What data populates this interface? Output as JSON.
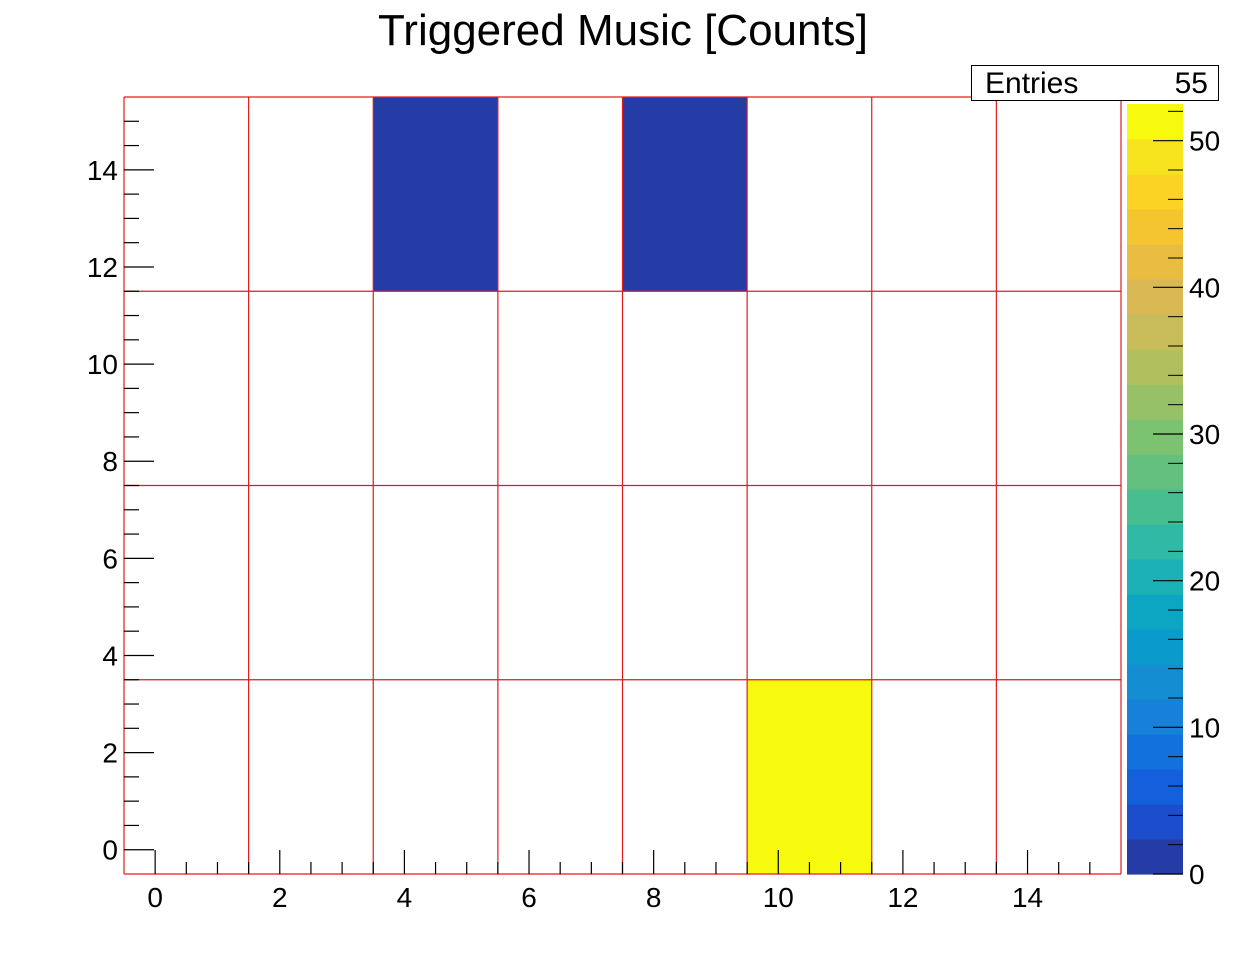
{
  "chart_data": {
    "type": "heatmap",
    "title": "Triggered Music [Counts]",
    "xlabel": "",
    "ylabel": "",
    "x_range": [
      -0.5,
      15.5
    ],
    "y_range": [
      -0.5,
      15.5
    ],
    "x_bin_edges": [
      -0.5,
      1.5,
      3.5,
      5.5,
      7.5,
      9.5,
      11.5,
      13.5,
      15.5
    ],
    "y_bin_edges": [
      -0.5,
      3.5,
      7.5,
      11.5,
      15.5
    ],
    "x_ticks": [
      0,
      2,
      4,
      6,
      8,
      10,
      12,
      14
    ],
    "y_ticks": [
      0,
      2,
      4,
      6,
      8,
      10,
      12,
      14
    ],
    "z_range": [
      0,
      52.5
    ],
    "z_ticks": [
      0,
      10,
      20,
      30,
      40,
      50
    ],
    "cells": [
      {
        "x_bin": [
          3.5,
          5.5
        ],
        "y_bin": [
          11.5,
          15.5
        ],
        "value": 1
      },
      {
        "x_bin": [
          7.5,
          9.5
        ],
        "y_bin": [
          11.5,
          15.5
        ],
        "value": 1
      },
      {
        "x_bin": [
          9.5,
          11.5
        ],
        "y_bin": [
          -0.5,
          3.5
        ],
        "value": 53
      }
    ],
    "stats": {
      "label": "Entries",
      "value": "55"
    },
    "grid": true,
    "grid_color": "#e31a1c",
    "palette": [
      "#253ba6",
      "#1b4dcc",
      "#145fdb",
      "#1271dd",
      "#1780d8",
      "#148dd3",
      "#0b9acc",
      "#0ca6c2",
      "#1cb1b4",
      "#30b9a4",
      "#48be90",
      "#63c07f",
      "#7cc271",
      "#97c166",
      "#b2bf5f",
      "#c8bd5a",
      "#dab955",
      "#e9bc42",
      "#f4c52f",
      "#fbd324",
      "#f8e31f",
      "#f8fa0d"
    ]
  }
}
